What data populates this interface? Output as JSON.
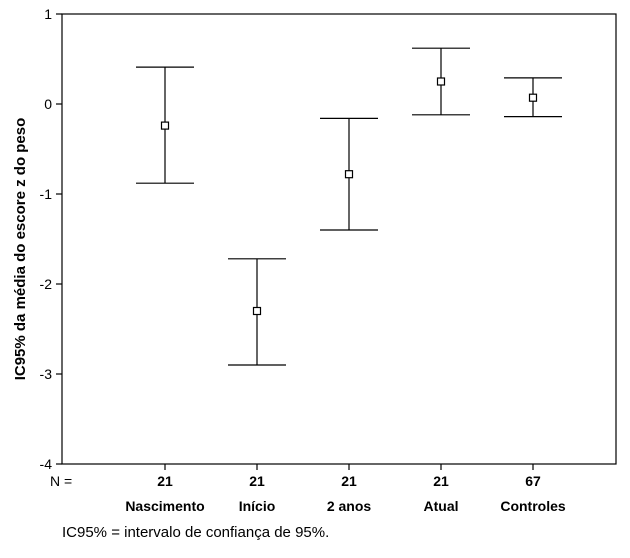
{
  "chart_data": {
    "type": "errorbar",
    "ylabel": "IC95% da média do escore z do peso",
    "xlabel": "",
    "ylim": [
      -4,
      1
    ],
    "yticks": [
      1,
      0,
      -1,
      -2,
      -3,
      -4
    ],
    "ytick_labels": [
      "1",
      "0",
      "-1",
      "-2",
      "-3",
      "-4"
    ],
    "n_row_label": "N =",
    "categories": [
      "Nascimento",
      "Início",
      "2 anos",
      "Atual",
      "Controles"
    ],
    "n": [
      "21",
      "21",
      "21",
      "21",
      "67"
    ],
    "mean": [
      -0.24,
      -2.3,
      -0.78,
      0.25,
      0.07
    ],
    "lower": [
      -0.88,
      -2.9,
      -1.4,
      -0.12,
      -0.14
    ],
    "upper": [
      0.41,
      -1.72,
      -0.16,
      0.62,
      0.29
    ],
    "grid": false
  },
  "footnote": "IC95% = intervalo de confiança de 95%."
}
